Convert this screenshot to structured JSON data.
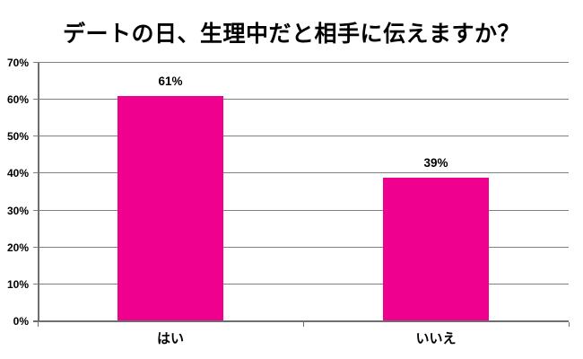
{
  "title": "デートの日、生理中だと相手に伝えますか？",
  "chart_data": {
    "type": "bar",
    "title": "デートの日、生理中だと相手に伝えますか？",
    "categories": [
      "はい",
      "いいえ"
    ],
    "values": [
      61,
      39
    ],
    "data_labels": [
      "61%",
      "39%"
    ],
    "ylim": [
      0,
      70
    ],
    "yticks": [
      0,
      10,
      20,
      30,
      40,
      50,
      60,
      70
    ],
    "ytick_labels": [
      "0%",
      "10%",
      "20%",
      "30%",
      "40%",
      "50%",
      "60%",
      "70%"
    ],
    "xlabel": "",
    "ylabel": "",
    "grid": true,
    "legend": "none",
    "colors": {
      "bar": "#F0008F",
      "gridline": "#808080",
      "axis": "#6e6e6e",
      "text": "#000000",
      "background": "#FFFFFF"
    }
  }
}
